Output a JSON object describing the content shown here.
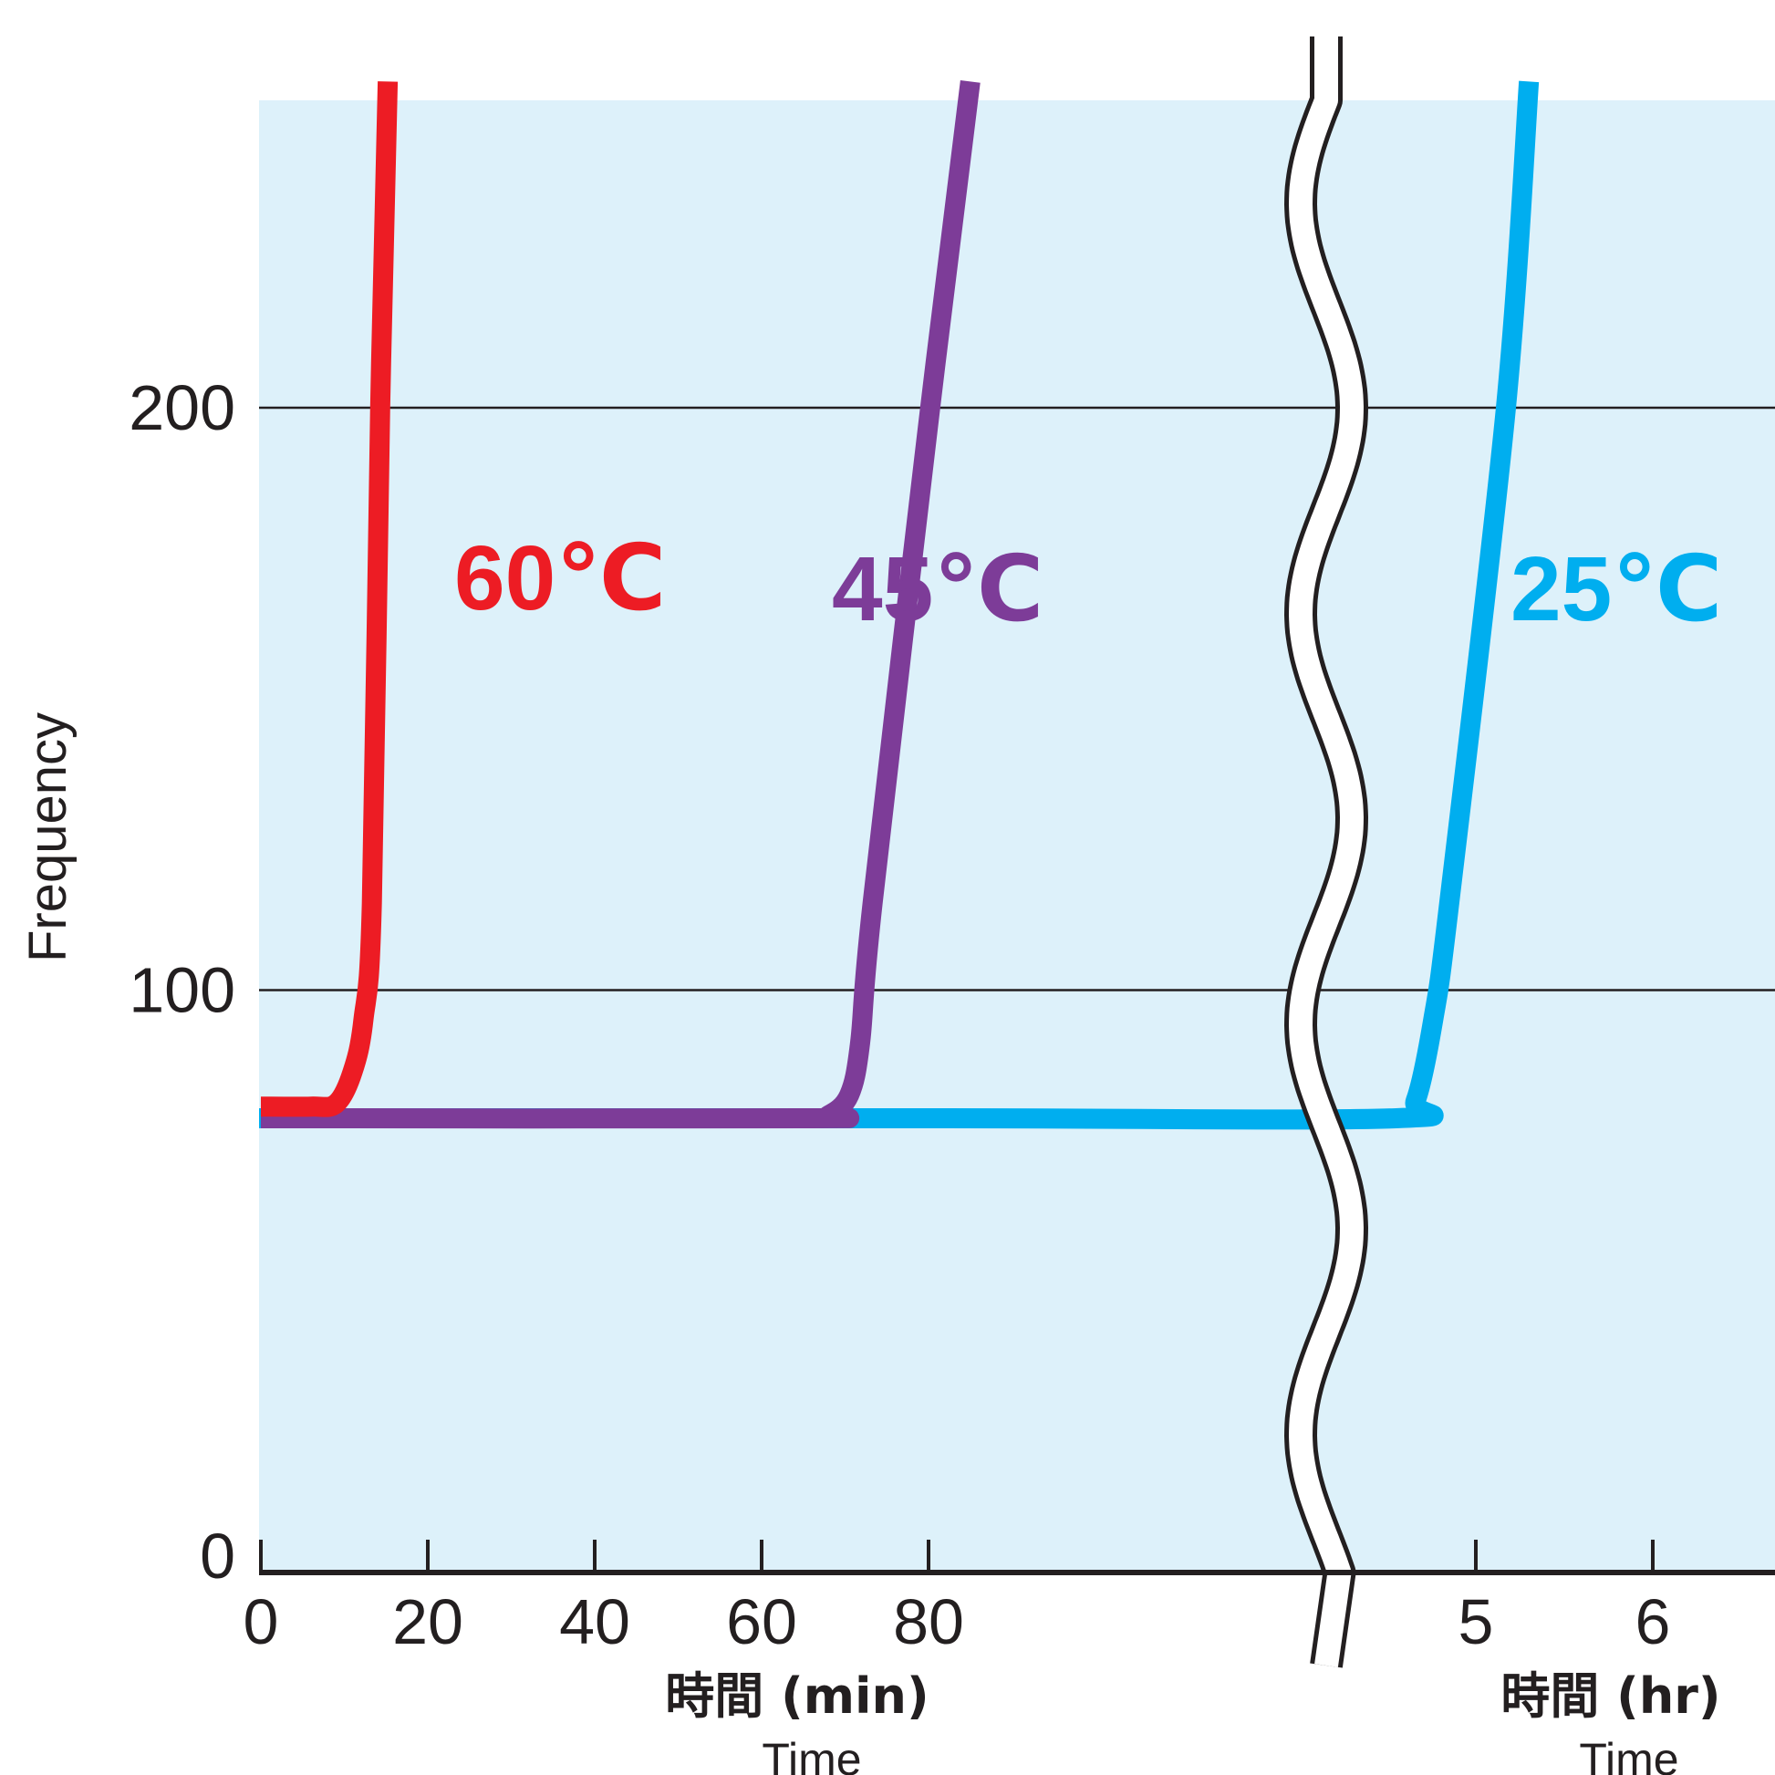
{
  "chart_data": {
    "type": "line",
    "ylabel": "Frequency",
    "y_ticks": [
      "0",
      "100",
      "200"
    ],
    "ylim": [
      0,
      255
    ],
    "gridlines_y": [
      100,
      200
    ],
    "plot_background": "#ddf1fa",
    "axis_break": true,
    "x_axis_min": {
      "ticks": [
        "0",
        "20",
        "40",
        "60",
        "80"
      ],
      "title_main": "時間 (min)",
      "title_sub": "Time"
    },
    "x_axis_hr": {
      "ticks": [
        "5",
        "6"
      ],
      "title_main": "時間 (hr)",
      "title_sub": "Time"
    },
    "series": [
      {
        "name": "60℃",
        "color": "#ed1c24",
        "points": [
          [
            0,
            80
          ],
          [
            6,
            80
          ],
          [
            9,
            80.5
          ],
          [
            11,
            86
          ],
          [
            12.3,
            95
          ],
          [
            13.3,
            115
          ],
          [
            14.3,
            200
          ],
          [
            15.2,
            256
          ]
        ]
      },
      {
        "name": "45℃",
        "color": "#7d3c98",
        "points": [
          [
            0,
            78
          ],
          [
            65,
            78
          ],
          [
            68,
            78.5
          ],
          [
            70.5,
            82
          ],
          [
            71.8,
            91
          ],
          [
            73.3,
            115
          ],
          [
            80.2,
            200
          ],
          [
            85,
            256
          ]
        ]
      },
      {
        "name": "25℃",
        "color": "#00aeef",
        "hr_points": [
          [
            4.55,
            78
          ],
          [
            4.66,
            81
          ],
          [
            4.76,
            95
          ],
          [
            4.85,
            115
          ],
          [
            5.17,
            200
          ],
          [
            5.3,
            256
          ]
        ]
      }
    ]
  }
}
